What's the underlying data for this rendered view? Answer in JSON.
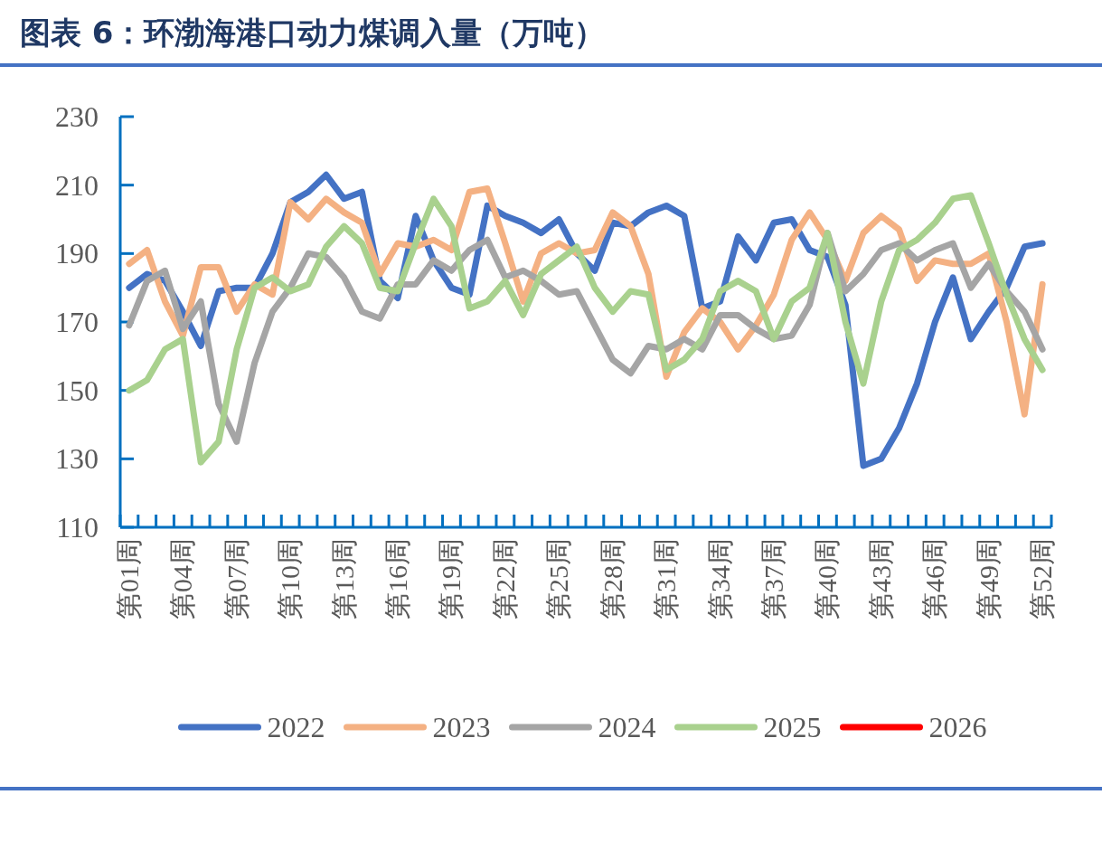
{
  "chart_data": {
    "type": "line",
    "title": "图表 6：环渤海港口动力煤调入量（万吨）",
    "categories": [
      "第01周",
      null,
      null,
      "第04周",
      null,
      null,
      "第07周",
      null,
      null,
      "第10周",
      null,
      null,
      "第13周",
      null,
      null,
      "第16周",
      null,
      null,
      "第19周",
      null,
      null,
      "第22周",
      null,
      null,
      "第25周",
      null,
      null,
      "第28周",
      null,
      null,
      "第31周",
      null,
      null,
      "第34周",
      null,
      null,
      "第37周",
      null,
      null,
      "第40周",
      null,
      null,
      "第43周",
      null,
      null,
      "第46周",
      null,
      null,
      "第49周",
      null,
      null,
      "第52周"
    ],
    "series": [
      {
        "name": "2022",
        "color": "#4472c4",
        "values": [
          180,
          184,
          182,
          173,
          163,
          179,
          180,
          180,
          190,
          205,
          208,
          213,
          206,
          208,
          182,
          177,
          201,
          188,
          180,
          178,
          204,
          201,
          199,
          196,
          200,
          190,
          185,
          199,
          198,
          202,
          204,
          201,
          174,
          176,
          195,
          188,
          199,
          200,
          191,
          189,
          175,
          128,
          130,
          139,
          152,
          170,
          183,
          165,
          173,
          180,
          192,
          193
        ]
      },
      {
        "name": "2023",
        "color": "#f4b183",
        "values": [
          187,
          191,
          176,
          166,
          186,
          186,
          173,
          181,
          178,
          205,
          200,
          206,
          202,
          199,
          184,
          193,
          192,
          194,
          191,
          208,
          209,
          193,
          176,
          190,
          193,
          190,
          191,
          202,
          198,
          184,
          154,
          167,
          174,
          170,
          162,
          169,
          178,
          194,
          202,
          194,
          182,
          196,
          201,
          197,
          182,
          188,
          187,
          187,
          190,
          170,
          143,
          181
        ]
      },
      {
        "name": "2024",
        "color": "#a5a5a5",
        "values": [
          169,
          182,
          185,
          168,
          176,
          146,
          135,
          158,
          173,
          180,
          190,
          189,
          183,
          173,
          171,
          181,
          181,
          188,
          185,
          191,
          194,
          183,
          185,
          182,
          178,
          179,
          169,
          159,
          155,
          163,
          162,
          165,
          162,
          172,
          172,
          168,
          165,
          166,
          175,
          196,
          179,
          184,
          191,
          193,
          188,
          191,
          193,
          180,
          187,
          179,
          173,
          162
        ]
      },
      {
        "name": "2025",
        "color": "#a9d18e",
        "values": [
          150,
          153,
          162,
          165,
          129,
          135,
          162,
          180,
          183,
          179,
          181,
          192,
          198,
          193,
          180,
          179,
          193,
          206,
          198,
          174,
          176,
          182,
          172,
          184,
          188,
          192,
          180,
          173,
          179,
          178,
          156,
          159,
          165,
          179,
          182,
          179,
          165,
          176,
          180,
          196,
          170,
          152,
          176,
          191,
          194,
          199,
          206,
          207,
          193,
          178,
          165,
          156
        ]
      },
      {
        "name": "2026",
        "color": "#ff0000",
        "values": [
          null,
          null,
          null,
          null,
          null,
          null,
          null,
          null,
          null,
          null,
          null,
          null,
          null,
          null,
          null,
          null,
          null,
          null,
          null,
          null,
          null,
          null,
          null,
          null,
          null,
          null,
          null,
          null,
          null,
          null,
          null,
          null,
          null,
          null,
          null,
          null,
          null,
          null,
          null,
          null,
          null,
          null,
          null,
          null,
          null,
          null,
          null,
          null,
          null,
          null,
          null,
          null
        ]
      }
    ],
    "ylim": [
      110,
      230
    ],
    "yticks": [
      110,
      130,
      150,
      170,
      190,
      210,
      230
    ],
    "grid": false,
    "legend": "bottom",
    "marker": "none",
    "line_style": "solid"
  }
}
